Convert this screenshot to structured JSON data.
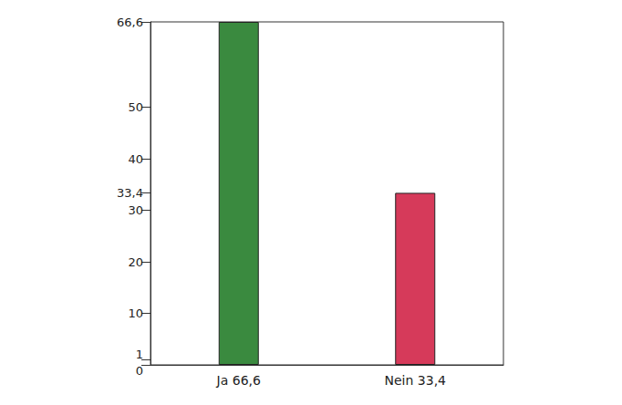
{
  "chart_data": {
    "type": "bar",
    "categories": [
      "Ja 66,6",
      "Nein 33,4"
    ],
    "values": [
      66.6,
      33.4
    ],
    "colors": [
      "#3a8a3f",
      "#d63a5a"
    ],
    "ylim": [
      0,
      66.6
    ],
    "yticks": [
      0,
      1,
      10,
      20,
      30,
      {
        "value": 33.4,
        "label": "33,4"
      },
      40,
      50,
      {
        "value": 66.6,
        "label": "66,6"
      }
    ],
    "grid": false
  }
}
